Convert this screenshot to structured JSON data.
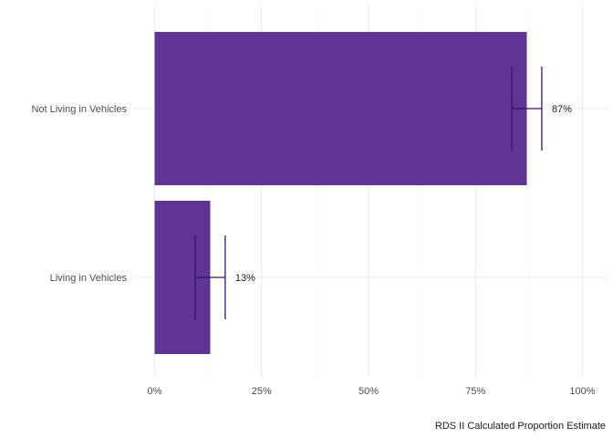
{
  "chart_data": {
    "type": "bar",
    "orientation": "horizontal",
    "categories": [
      "Not Living in Vehicles",
      "Living in Vehicles"
    ],
    "values": [
      0.87,
      0.13
    ],
    "error_bars": [
      {
        "lower": 0.835,
        "upper": 0.905
      },
      {
        "lower": 0.095,
        "upper": 0.165
      }
    ],
    "data_labels": [
      "87%",
      "13%"
    ],
    "xlabel": "RDS II Calculated Proportion Estimate",
    "ylabel": "",
    "xlim": [
      0,
      1
    ],
    "x_ticks": [
      0,
      0.25,
      0.5,
      0.75,
      1.0
    ],
    "x_tick_labels": [
      "0%",
      "25%",
      "50%",
      "75%",
      "100%"
    ],
    "grid": true,
    "legend": "none",
    "bar_color": "#5b2d8e",
    "error_bar_color": "#3b0f70"
  }
}
